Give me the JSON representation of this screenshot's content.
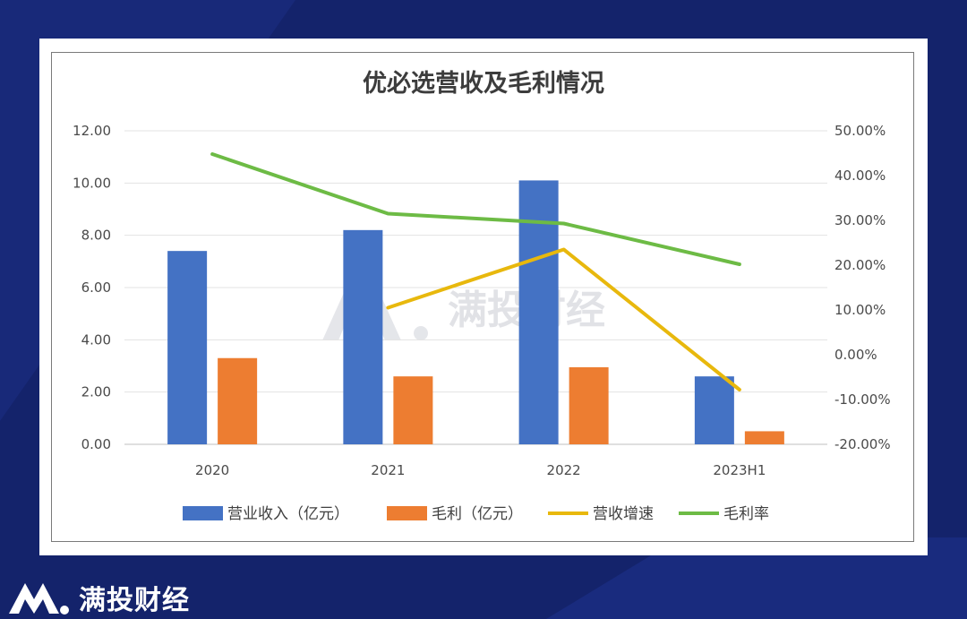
{
  "brand": {
    "name": "满投财经",
    "watermark": "满投财经"
  },
  "colors": {
    "background": "#14236b",
    "revenue": "#4472c4",
    "gross_profit": "#ed7d31",
    "growth": "#e8b80d",
    "margin": "#6dbb45"
  },
  "chart_data": {
    "type": "bar",
    "title": "优必选营收及毛利情况",
    "categories": [
      "2020",
      "2021",
      "2022",
      "2023H1"
    ],
    "y_left": {
      "ylim": [
        0,
        12
      ],
      "ticks": [
        "0.00",
        "2.00",
        "4.00",
        "6.00",
        "8.00",
        "10.00",
        "12.00"
      ]
    },
    "y_right": {
      "ylim": [
        -20,
        50
      ],
      "ticks": [
        "-20.00%",
        "-10.00%",
        "0.00%",
        "10.00%",
        "20.00%",
        "30.00%",
        "40.00%",
        "50.00%"
      ]
    },
    "series": [
      {
        "name": "营业收入（亿元）",
        "type": "bar",
        "axis": "left",
        "values": [
          7.4,
          8.2,
          10.1,
          2.6
        ]
      },
      {
        "name": "毛利（亿元）",
        "type": "bar",
        "axis": "left",
        "values": [
          3.3,
          2.6,
          2.95,
          0.5
        ]
      },
      {
        "name": "营收增速",
        "type": "line",
        "axis": "right",
        "values": [
          null,
          10.5,
          23.5,
          -7.8
        ]
      },
      {
        "name": "毛利率",
        "type": "line",
        "axis": "right",
        "values": [
          44.8,
          31.5,
          29.3,
          20.2
        ]
      }
    ],
    "grid": "horizontal",
    "legend_position": "bottom"
  }
}
